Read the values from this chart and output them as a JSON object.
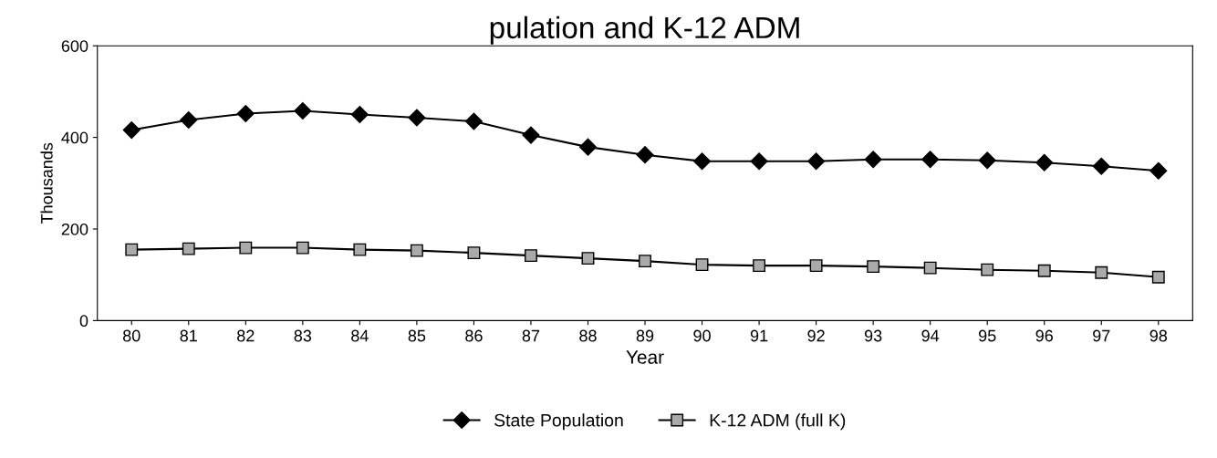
{
  "chart_data": {
    "type": "line",
    "title": "pulation and K-12 ADM",
    "xlabel": "Year",
    "ylabel": "Thousands",
    "categories": [
      "80",
      "81",
      "82",
      "83",
      "84",
      "85",
      "86",
      "87",
      "88",
      "89",
      "90",
      "91",
      "92",
      "93",
      "94",
      "95",
      "96",
      "97",
      "98"
    ],
    "series": [
      {
        "name": "State Population",
        "color": "#000000",
        "marker": "diamond",
        "values": [
          416,
          438,
          452,
          458,
          450,
          443,
          435,
          405,
          379,
          362,
          348,
          348,
          348,
          352,
          352,
          350,
          345,
          337,
          327
        ]
      },
      {
        "name": "K-12 ADM (full K)",
        "color": "#000000",
        "marker": "square",
        "values": [
          155,
          157,
          159,
          159,
          155,
          153,
          148,
          142,
          136,
          130,
          122,
          120,
          120,
          118,
          115,
          111,
          109,
          105,
          95
        ]
      }
    ],
    "ylim": [
      0,
      600
    ],
    "yticks": [
      0,
      200,
      400,
      600
    ],
    "legend": "bottom",
    "line_style": "solid"
  }
}
